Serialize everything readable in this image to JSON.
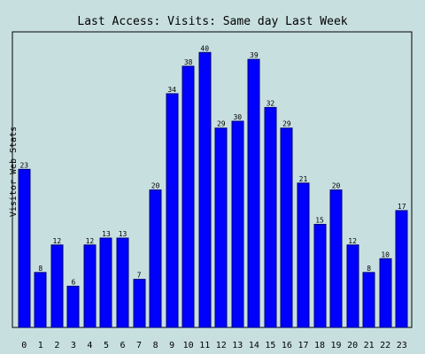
{
  "colors": {
    "background": "#c8dfe0",
    "plot_border": "#000000",
    "bar_fill": "#0000ff",
    "bar_stroke": "#00007a",
    "text": "#000000"
  },
  "chart_data": {
    "type": "bar",
    "title": "Last Access: Visits: Same day Last Week",
    "xlabel": "",
    "ylabel": "Visitor Web Stats",
    "grid": false,
    "ylim": [
      0,
      43
    ],
    "categories": [
      "0",
      "1",
      "2",
      "3",
      "4",
      "5",
      "6",
      "7",
      "8",
      "9",
      "10",
      "11",
      "12",
      "13",
      "14",
      "15",
      "16",
      "17",
      "18",
      "19",
      "20",
      "21",
      "22",
      "23"
    ],
    "values": [
      23,
      8,
      12,
      6,
      12,
      13,
      13,
      7,
      20,
      34,
      38,
      40,
      29,
      30,
      39,
      32,
      29,
      21,
      15,
      20,
      12,
      8,
      10,
      17
    ],
    "value_labels_visible": true
  }
}
